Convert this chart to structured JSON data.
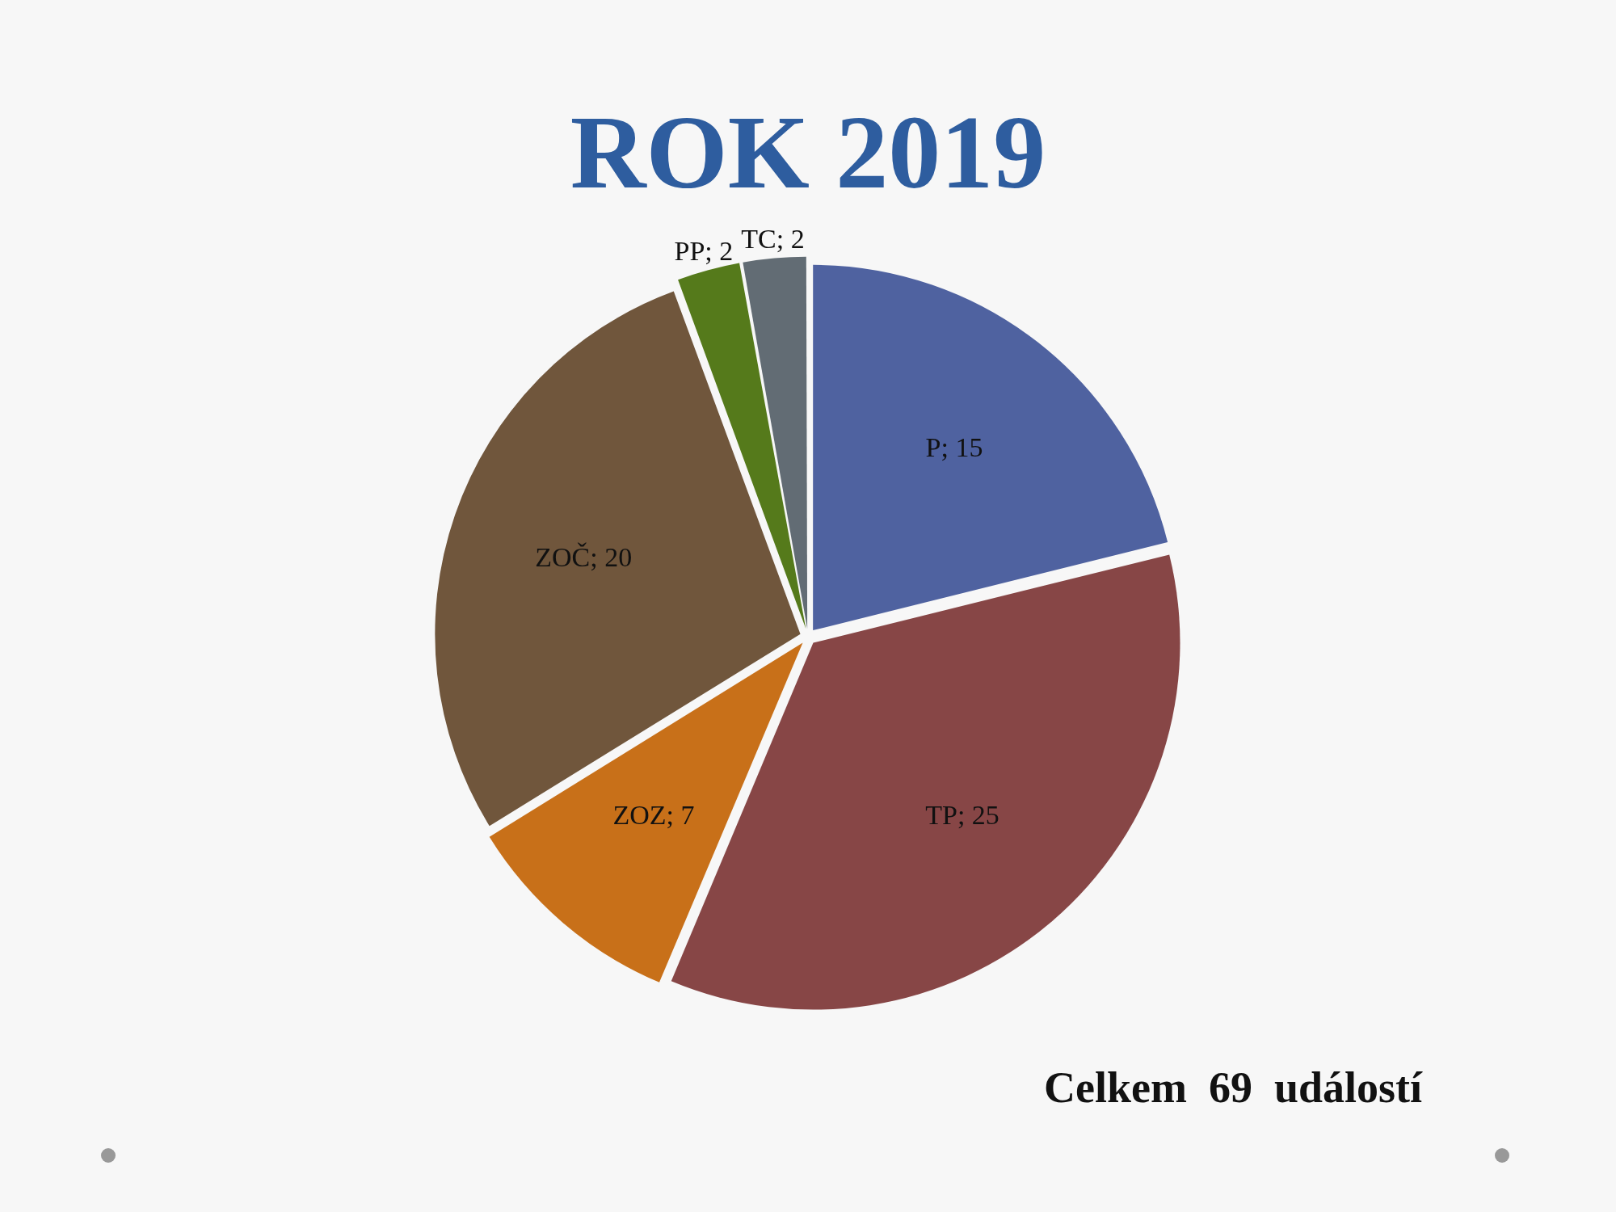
{
  "chart_data": {
    "type": "pie",
    "title": "ROK 2019",
    "categories": [
      null,
      null,
      null,
      null,
      null,
      null
    ],
    "values": [
      15,
      25,
      7,
      20,
      2,
      2
    ],
    "colors": [
      "#4f62a0",
      "#874646",
      "#c87019",
      "#70563c",
      "#557a1b",
      "#626c74"
    ],
    "value_labels": [
      "P; 15",
      "TP; 25",
      "ZOZ; 7",
      "ZOČ; 20",
      "PP; 2",
      "TC; 2"
    ],
    "legend": false,
    "annotations": [
      "Celkem  69  událostí"
    ]
  }
}
